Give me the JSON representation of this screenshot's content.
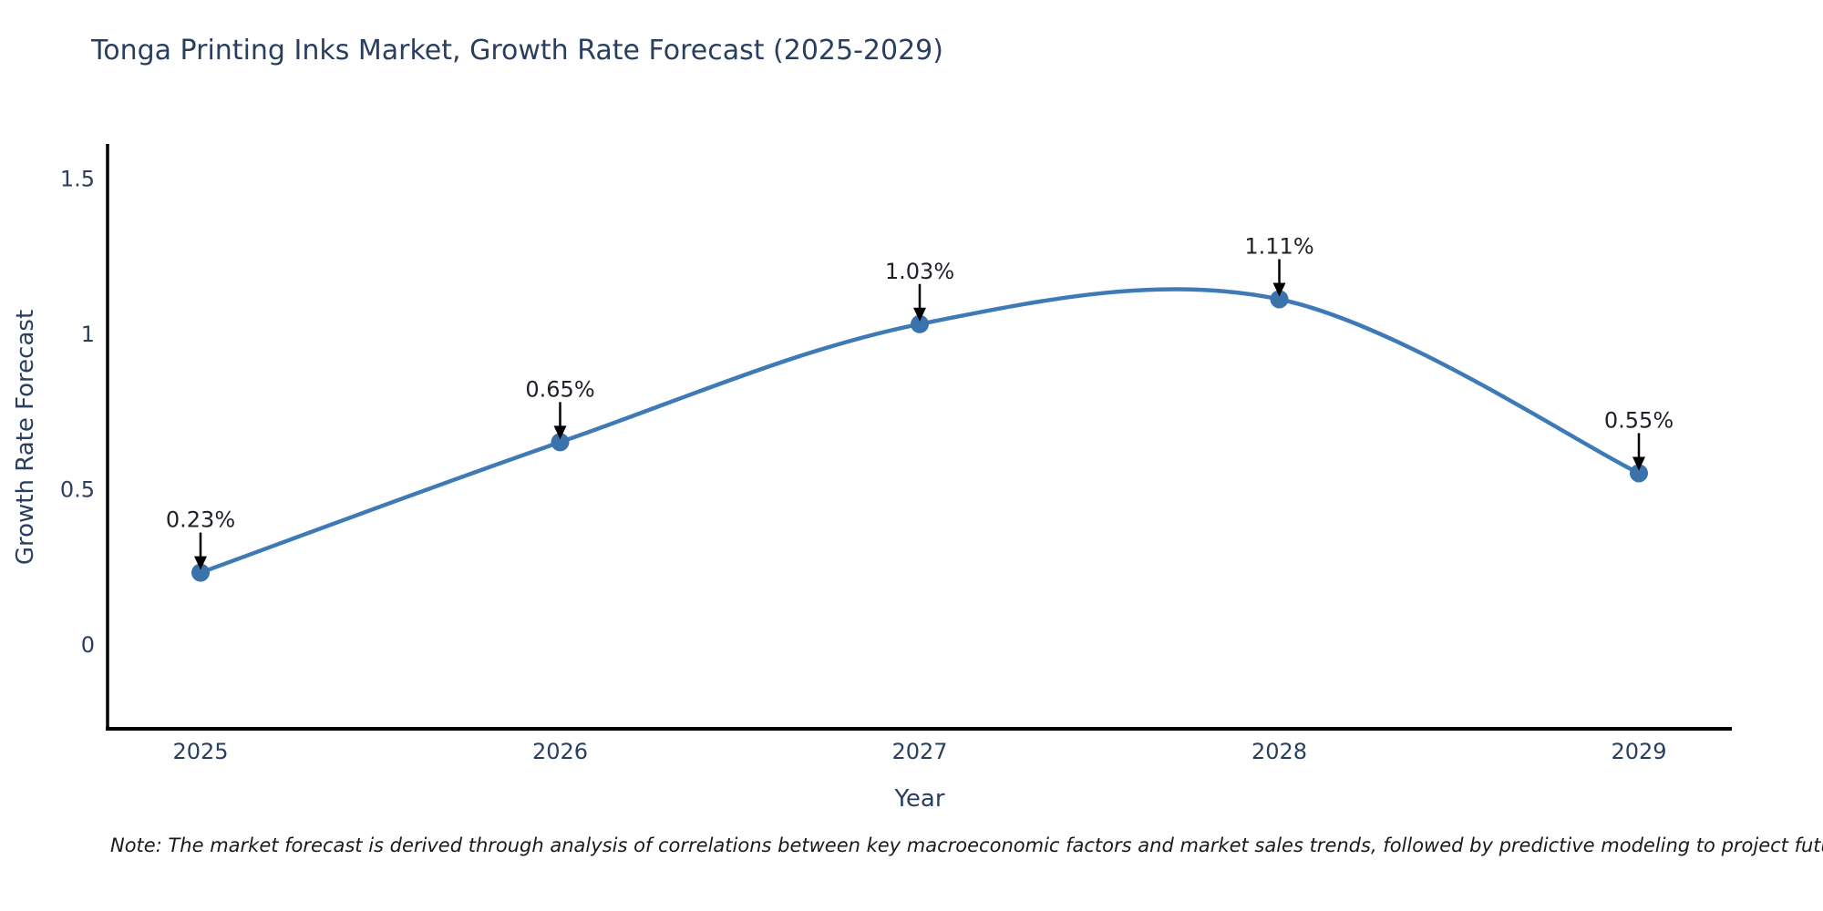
{
  "chart_data": {
    "type": "line",
    "title": "Tonga Printing Inks Market, Growth Rate Forecast (2025-2029)",
    "xlabel": "Year",
    "ylabel": "Growth Rate Forecast",
    "x": [
      2025,
      2026,
      2027,
      2028,
      2029
    ],
    "y": [
      0.23,
      0.65,
      1.03,
      1.11,
      0.55
    ],
    "point_labels": [
      "0.23%",
      "0.65%",
      "1.03%",
      "1.11%",
      "0.55%"
    ],
    "x_tick_labels": [
      "2025",
      "2026",
      "2027",
      "2028",
      "2029"
    ],
    "y_ticks": [
      0,
      0.5,
      1,
      1.5
    ],
    "y_tick_labels": [
      "0",
      "0.5",
      "1",
      "1.5"
    ],
    "ylim": [
      -0.27,
      1.6
    ],
    "line_shape": "spline",
    "grid": false,
    "legend": "none",
    "colors": {
      "line": "#3e7ab5",
      "marker": "#3a72ab",
      "axis": "#000000",
      "title_text": "#2a3f5f",
      "tick_text": "#2a3f5f",
      "annotation_text": "#1f2128",
      "annotation_arrow": "#000000"
    }
  },
  "note": "Note: The market forecast is derived through analysis of correlations between key macroeconomic factors and market sales trends, followed by predictive modeling to project future sales."
}
